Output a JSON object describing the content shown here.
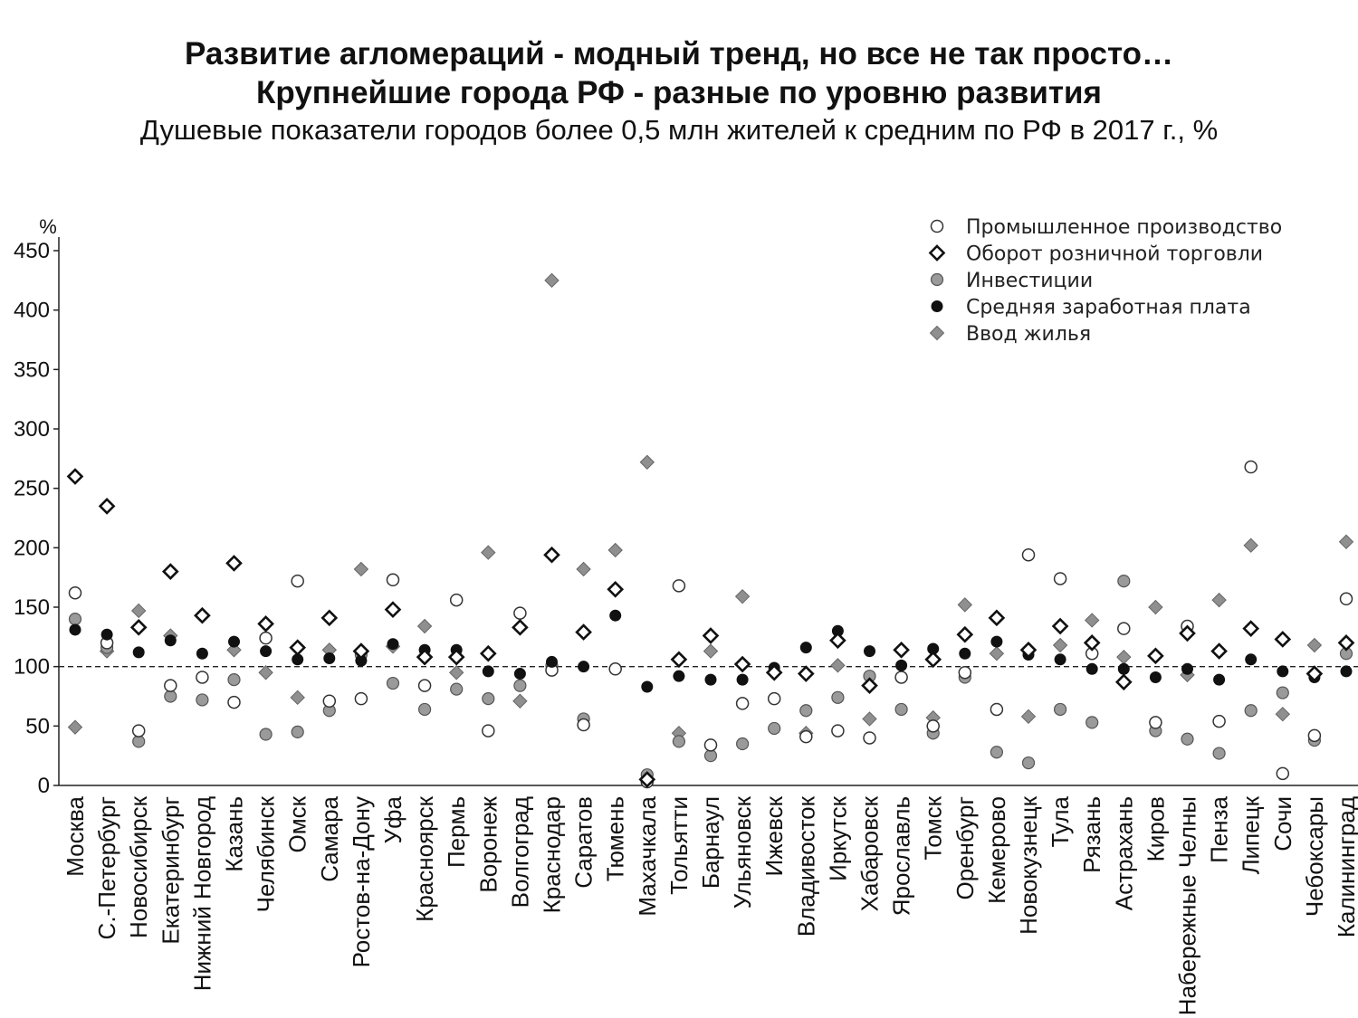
{
  "slide": {
    "title_line1": "Развитие агломераций - модный тренд, но все не так просто…",
    "title_line2": "Крупнейшие города РФ - разные по уровню развития",
    "subtitle": "Душевые показатели городов более 0,5 млн жителей к средним по РФ в 2017 г., %"
  },
  "chart_data": {
    "type": "scatter",
    "ylabel": "%",
    "ylim": [
      0,
      450
    ],
    "yticks": [
      0,
      50,
      100,
      150,
      200,
      250,
      300,
      350,
      400,
      450
    ],
    "reference_line": 100,
    "legend_position": "top-right",
    "categories": [
      "Москва",
      "С.-Петербург",
      "Новосибирск",
      "Екатеринбург",
      "Нижний Новгород",
      "Казань",
      "Челябинск",
      "Омск",
      "Самара",
      "Ростов-на-Дону",
      "Уфа",
      "Красноярск",
      "Пермь",
      "Воронеж",
      "Волгоград",
      "Краснодар",
      "Саратов",
      "Тюмень",
      "Махачкала",
      "Тольятти",
      "Барнаул",
      "Ульяновск",
      "Ижевск",
      "Владивосток",
      "Иркутск",
      "Хабаровск",
      "Ярославль",
      "Томск",
      "Оренбург",
      "Кемерово",
      "Новокузнецк",
      "Тула",
      "Рязань",
      "Астрахань",
      "Киров",
      "Набережные Челны",
      "Пенза",
      "Липецк",
      "Сочи",
      "Чебоксары",
      "Калининград"
    ],
    "series": [
      {
        "name": "Промышленное производство",
        "marker": "open-circle",
        "values": [
          162,
          120,
          46,
          84,
          91,
          70,
          124,
          172,
          71,
          73,
          173,
          84,
          156,
          46,
          145,
          97,
          51,
          98,
          3,
          168,
          34,
          69,
          73,
          41,
          46,
          40,
          91,
          50,
          95,
          64,
          194,
          174,
          111,
          132,
          53,
          134,
          54,
          268,
          10,
          42,
          157
        ]
      },
      {
        "name": "Оборот розничной торговли",
        "marker": "open-diamond",
        "values": [
          260,
          235,
          133,
          180,
          143,
          187,
          136,
          116,
          141,
          113,
          148,
          108,
          108,
          111,
          133,
          194,
          129,
          165,
          5,
          106,
          126,
          102,
          95,
          94,
          122,
          84,
          114,
          106,
          127,
          141,
          114,
          134,
          120,
          87,
          109,
          128,
          113,
          132,
          123,
          94,
          120
        ]
      },
      {
        "name": "Инвестиции",
        "marker": "gray-circle",
        "values": [
          140,
          116,
          37,
          75,
          72,
          89,
          43,
          45,
          63,
          110,
          86,
          64,
          81,
          73,
          84,
          101,
          56,
          null,
          9,
          37,
          25,
          35,
          48,
          63,
          74,
          92,
          64,
          44,
          91,
          28,
          19,
          64,
          53,
          172,
          46,
          39,
          27,
          63,
          78,
          38,
          111
        ]
      },
      {
        "name": "Средняя заработная плата",
        "marker": "black-circle",
        "values": [
          131,
          127,
          112,
          122,
          111,
          121,
          113,
          106,
          107,
          105,
          119,
          114,
          114,
          96,
          94,
          104,
          100,
          143,
          83,
          92,
          89,
          89,
          99,
          116,
          130,
          113,
          101,
          115,
          111,
          121,
          110,
          106,
          98,
          98,
          91,
          98,
          89,
          106,
          96,
          91,
          96
        ]
      },
      {
        "name": "Ввод жилья",
        "marker": "gray-diamond",
        "values": [
          49,
          113,
          147,
          126,
          null,
          114,
          95,
          74,
          114,
          182,
          117,
          134,
          95,
          196,
          71,
          425,
          182,
          198,
          272,
          44,
          113,
          159,
          null,
          44,
          101,
          56,
          null,
          57,
          152,
          111,
          58,
          118,
          139,
          108,
          150,
          93,
          156,
          202,
          60,
          118,
          205
        ]
      }
    ]
  }
}
